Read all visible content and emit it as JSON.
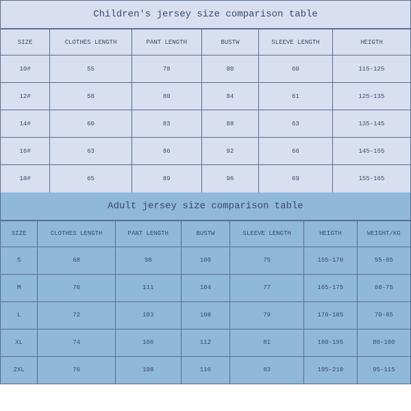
{
  "children": {
    "title": "Children's jersey size comparison table",
    "bg_color": "#d8dff0",
    "border_color": "#5a6b8c",
    "text_color": "#3a4a6b",
    "title_fontsize": 14,
    "cell_fontsize": 9,
    "columns": [
      "SIZE",
      "CLOTHES LENGTH",
      "PANT LENGTH",
      "BUSTW",
      "SLEEVE LENGTH",
      "HEIGTH"
    ],
    "col_widths_pct": [
      12,
      20,
      17,
      14,
      18,
      19
    ],
    "rows": [
      [
        "10#",
        "55",
        "78",
        "80",
        "60",
        "115-125"
      ],
      [
        "12#",
        "58",
        "80",
        "84",
        "61",
        "125-135"
      ],
      [
        "14#",
        "60",
        "83",
        "88",
        "63",
        "135-145"
      ],
      [
        "16#",
        "63",
        "86",
        "92",
        "66",
        "145-155"
      ],
      [
        "18#",
        "65",
        "89",
        "96",
        "69",
        "155-165"
      ]
    ]
  },
  "adult": {
    "title": "Adult jersey size comparison table",
    "bg_color": "#8fb8d9",
    "border_color": "#5a6b8c",
    "text_color": "#3a4a6b",
    "title_fontsize": 14,
    "cell_fontsize": 9,
    "columns": [
      "SIZE",
      "CLOTHES LENGTH",
      "PANT LENGTH",
      "BUSTW",
      "SLEEVE LENGTH",
      "HEIGTH",
      "WEIGHT/KG"
    ],
    "col_widths_pct": [
      9,
      19,
      16,
      12,
      18,
      13,
      13
    ],
    "rows": [
      [
        "S",
        "68",
        "98",
        "100",
        "75",
        "155-170",
        "55-65"
      ],
      [
        "M",
        "70",
        "111",
        "104",
        "77",
        "165-175",
        "60-75"
      ],
      [
        "L",
        "72",
        "103",
        "108",
        "79",
        "170-185",
        "70-85"
      ],
      [
        "XL",
        "74",
        "106",
        "112",
        "81",
        "180-195",
        "80-100"
      ],
      [
        "2XL",
        "76",
        "108",
        "116",
        "83",
        "195-210",
        "95-115"
      ]
    ]
  }
}
